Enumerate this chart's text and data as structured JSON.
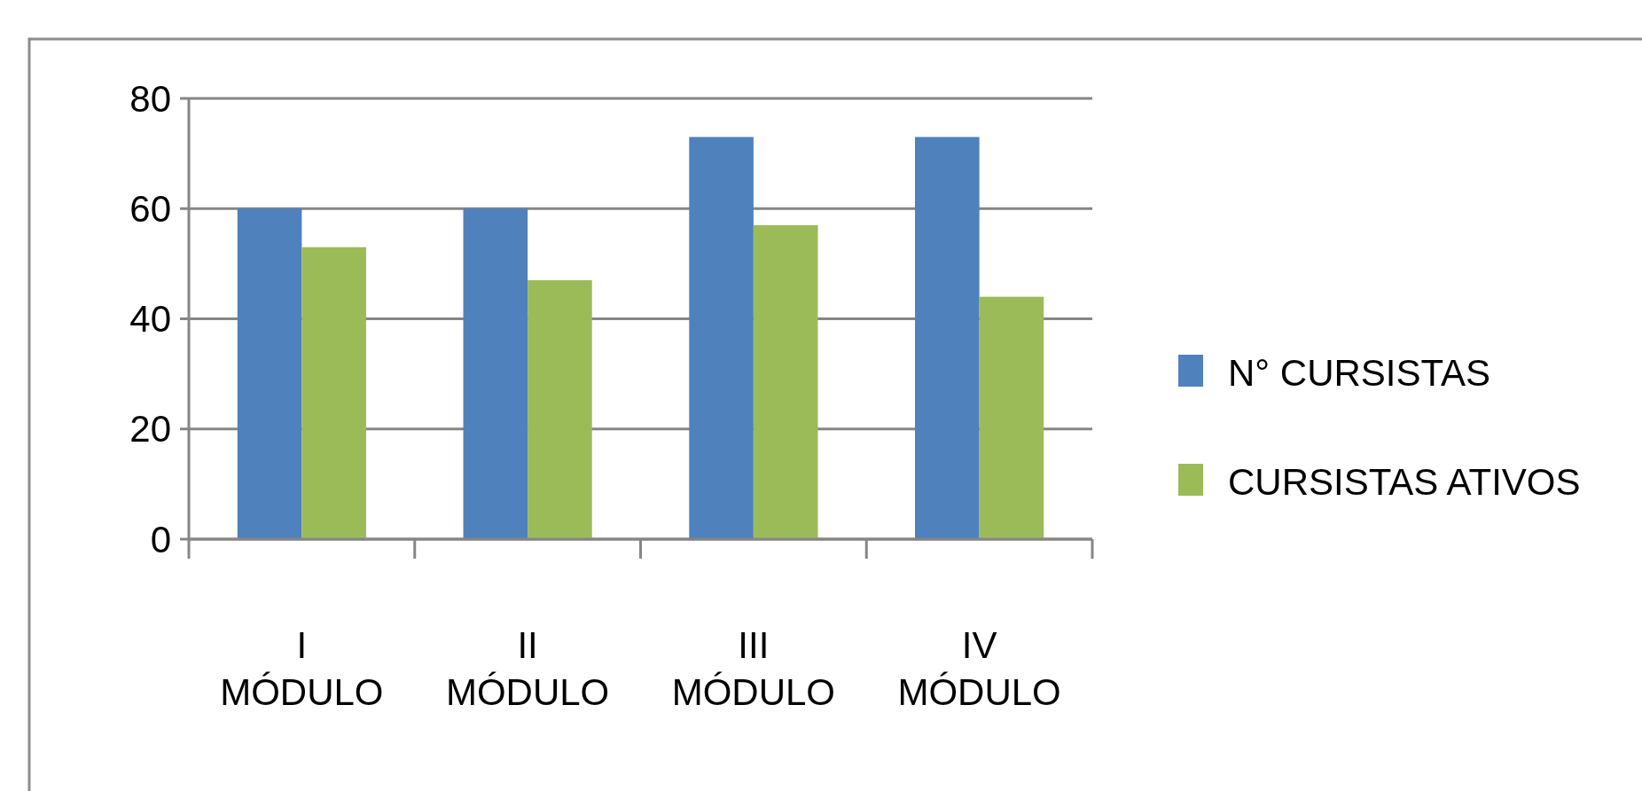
{
  "chart_data": {
    "type": "bar",
    "categories": [
      "I MÓDULO",
      "II MÓDULO",
      "III MÓDULO",
      "IV MÓDULO"
    ],
    "series": [
      {
        "name": "N° CURSISTAS",
        "color": "#4f81bd",
        "values": [
          60,
          60,
          73,
          73
        ]
      },
      {
        "name": "CURSISTAS ATIVOS",
        "color": "#9bbb59",
        "values": [
          53,
          47,
          57,
          44
        ]
      }
    ],
    "ylim": [
      0,
      80
    ],
    "yticks": [
      0,
      20,
      40,
      60,
      80
    ],
    "grid": "y",
    "legend": "right"
  }
}
